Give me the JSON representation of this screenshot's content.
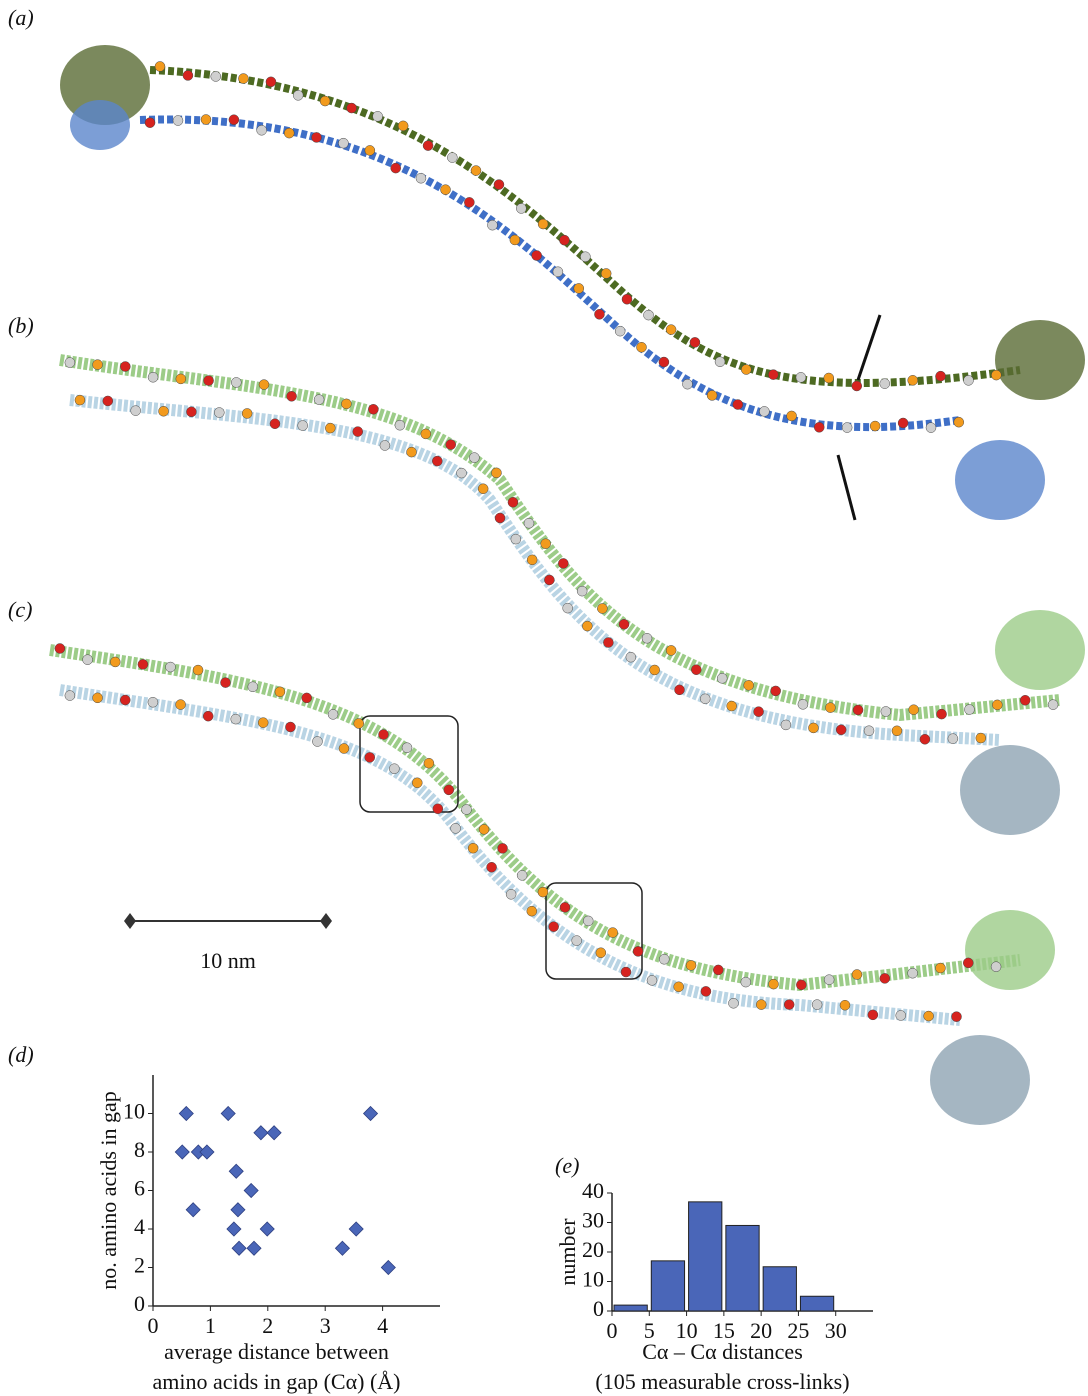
{
  "panels": {
    "a": "(a)",
    "b": "(b)",
    "c": "(c)",
    "d": "(d)",
    "e": "(e)"
  },
  "scale_bar": "10 nm",
  "chart_data": [
    {
      "type": "scatter",
      "ylabel": "no. amino acids in gap",
      "xlabel": [
        "average distance between",
        "amino acids in gap (Cα) (Å)"
      ],
      "xlim": [
        0,
        5
      ],
      "xticks": [
        0,
        1,
        2,
        3,
        4
      ],
      "ylim": [
        0,
        12
      ],
      "yticks": [
        0,
        2,
        4,
        6,
        8,
        10
      ],
      "color": "#4a66b8",
      "x": [
        0.58,
        1.31,
        3.79,
        0.51,
        0.79,
        0.94,
        1.88,
        2.11,
        1.45,
        1.71,
        0.7,
        1.48,
        1.41,
        1.99,
        3.54,
        1.5,
        1.76,
        3.3,
        4.1
      ],
      "values": [
        10,
        10,
        10,
        8,
        8,
        8,
        9,
        9,
        7,
        6,
        5,
        5,
        4,
        4,
        4,
        3,
        3,
        3,
        2
      ]
    },
    {
      "type": "histogram",
      "ylabel": "number",
      "xlabel": "Cα – Cα distances",
      "subtitle": "(105 measurable cross-links)",
      "xlim": [
        0,
        35
      ],
      "xticks": [
        0,
        5,
        10,
        15,
        20,
        25,
        30
      ],
      "ylim": [
        0,
        40
      ],
      "yticks": [
        0,
        10,
        20,
        30,
        40
      ],
      "color": "#4a66b8",
      "bins": [
        0,
        5,
        10,
        15,
        20,
        25,
        30
      ],
      "values": [
        2,
        17,
        37,
        29,
        15,
        5
      ]
    }
  ]
}
